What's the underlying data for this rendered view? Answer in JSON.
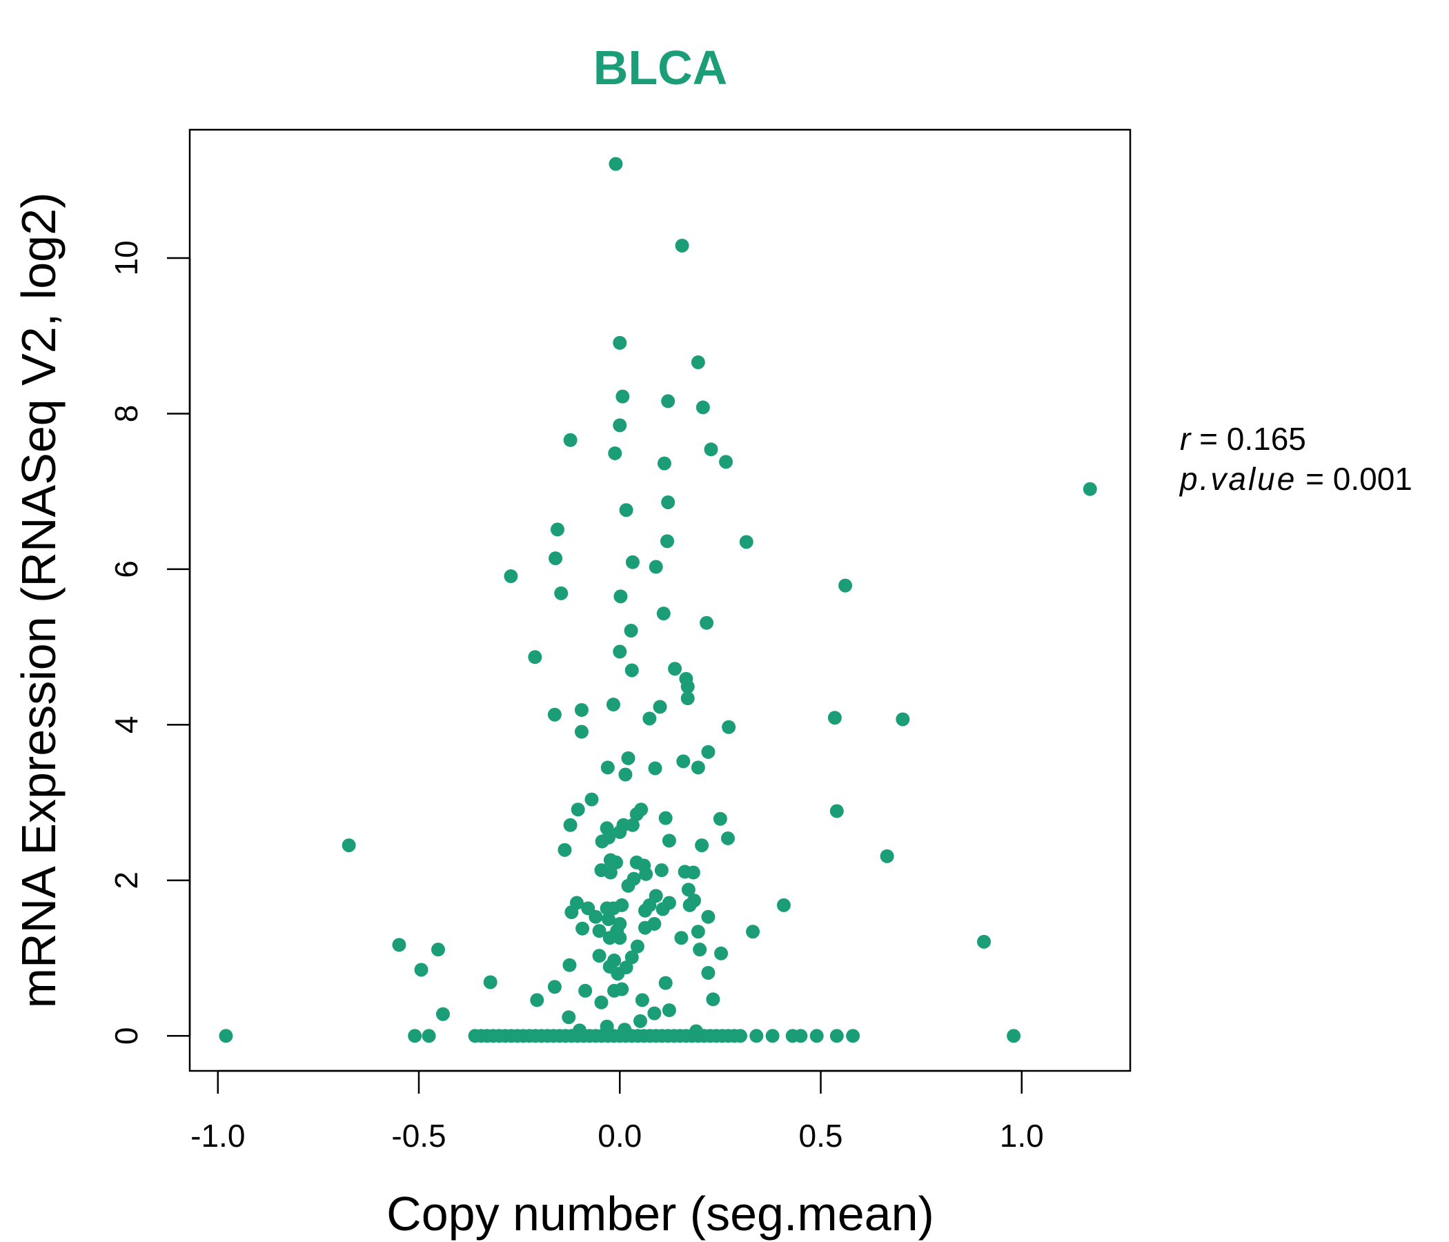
{
  "chart_data": {
    "type": "scatter",
    "title": "BLCA",
    "xlabel": "Copy number (seg.mean)",
    "ylabel": "mRNA Expression (RNASeq V2, log2)",
    "xlim": [
      -1.07,
      1.27
    ],
    "ylim": [
      -0.45,
      11.65
    ],
    "xticks": [
      -1.0,
      -0.5,
      0.0,
      0.5,
      1.0
    ],
    "xtick_labels": [
      "-1.0",
      "-0.5",
      "0.0",
      "0.5",
      "1.0"
    ],
    "yticks": [
      0,
      2,
      4,
      6,
      8,
      10
    ],
    "ytick_labels": [
      "0",
      "2",
      "4",
      "6",
      "8",
      "10"
    ],
    "grid": false,
    "color": "#1b9e77",
    "stats": {
      "r_label": "r",
      "r_value": "0.165",
      "p_label": "p.value",
      "p_value": "0.001",
      "eq": "="
    },
    "points": [
      [
        -0.01,
        11.21
      ],
      [
        0.155,
        10.16
      ],
      [
        0.0,
        8.91
      ],
      [
        0.195,
        8.66
      ],
      [
        0.007,
        8.22
      ],
      [
        0.12,
        8.16
      ],
      [
        0.207,
        8.08
      ],
      [
        0.0,
        7.85
      ],
      [
        -0.123,
        7.66
      ],
      [
        -0.012,
        7.49
      ],
      [
        0.227,
        7.54
      ],
      [
        0.111,
        7.36
      ],
      [
        0.264,
        7.38
      ],
      [
        1.17,
        7.03
      ],
      [
        0.12,
        6.86
      ],
      [
        0.016,
        6.76
      ],
      [
        -0.155,
        6.51
      ],
      [
        0.118,
        6.36
      ],
      [
        0.315,
        6.35
      ],
      [
        -0.16,
        6.14
      ],
      [
        0.032,
        6.09
      ],
      [
        0.09,
        6.03
      ],
      [
        -0.271,
        5.91
      ],
      [
        0.561,
        5.79
      ],
      [
        -0.146,
        5.69
      ],
      [
        0.002,
        5.65
      ],
      [
        0.109,
        5.43
      ],
      [
        0.216,
        5.31
      ],
      [
        0.028,
        5.21
      ],
      [
        0.0,
        4.94
      ],
      [
        -0.211,
        4.87
      ],
      [
        0.03,
        4.7
      ],
      [
        0.137,
        4.72
      ],
      [
        0.165,
        4.59
      ],
      [
        0.169,
        4.49
      ],
      [
        0.169,
        4.34
      ],
      [
        -0.016,
        4.26
      ],
      [
        0.1,
        4.23
      ],
      [
        -0.095,
        4.19
      ],
      [
        -0.162,
        4.13
      ],
      [
        0.535,
        4.09
      ],
      [
        0.074,
        4.08
      ],
      [
        0.704,
        4.07
      ],
      [
        0.271,
        3.97
      ],
      [
        -0.095,
        3.91
      ],
      [
        0.22,
        3.65
      ],
      [
        0.021,
        3.57
      ],
      [
        0.158,
        3.53
      ],
      [
        -0.03,
        3.45
      ],
      [
        0.088,
        3.44
      ],
      [
        0.195,
        3.45
      ],
      [
        0.014,
        3.36
      ],
      [
        -0.07,
        3.04
      ],
      [
        -0.104,
        2.91
      ],
      [
        0.053,
        2.91
      ],
      [
        0.54,
        2.89
      ],
      [
        0.042,
        2.85
      ],
      [
        0.114,
        2.8
      ],
      [
        0.25,
        2.79
      ],
      [
        -0.123,
        2.71
      ],
      [
        0.009,
        2.71
      ],
      [
        -0.032,
        2.67
      ],
      [
        0.032,
        2.71
      ],
      [
        0.0,
        2.62
      ],
      [
        -0.028,
        2.55
      ],
      [
        -0.044,
        2.5
      ],
      [
        0.123,
        2.51
      ],
      [
        0.269,
        2.54
      ],
      [
        -0.674,
        2.45
      ],
      [
        0.204,
        2.45
      ],
      [
        -0.137,
        2.39
      ],
      [
        0.665,
        2.31
      ],
      [
        -0.023,
        2.26
      ],
      [
        0.042,
        2.23
      ],
      [
        -0.009,
        2.23
      ],
      [
        0.06,
        2.19
      ],
      [
        0.104,
        2.13
      ],
      [
        0.162,
        2.11
      ],
      [
        0.183,
        2.1
      ],
      [
        -0.046,
        2.13
      ],
      [
        -0.023,
        2.1
      ],
      [
        0.065,
        2.08
      ],
      [
        0.035,
        2.02
      ],
      [
        0.021,
        1.93
      ],
      [
        0.171,
        1.88
      ],
      [
        0.09,
        1.8
      ],
      [
        -0.107,
        1.71
      ],
      [
        0.185,
        1.74
      ],
      [
        0.123,
        1.71
      ],
      [
        0.005,
        1.68
      ],
      [
        0.408,
        1.68
      ],
      [
        -0.079,
        1.64
      ],
      [
        0.074,
        1.68
      ],
      [
        -0.032,
        1.64
      ],
      [
        -0.016,
        1.64
      ],
      [
        0.174,
        1.68
      ],
      [
        -0.12,
        1.59
      ],
      [
        0.107,
        1.63
      ],
      [
        0.063,
        1.61
      ],
      [
        0.22,
        1.53
      ],
      [
        -0.06,
        1.53
      ],
      [
        -0.028,
        1.5
      ],
      [
        0.0,
        1.44
      ],
      [
        0.086,
        1.44
      ],
      [
        -0.093,
        1.38
      ],
      [
        -0.051,
        1.35
      ],
      [
        -0.007,
        1.35
      ],
      [
        0.063,
        1.39
      ],
      [
        0.331,
        1.34
      ],
      [
        0.195,
        1.34
      ],
      [
        -0.025,
        1.26
      ],
      [
        0.0,
        1.26
      ],
      [
        0.153,
        1.26
      ],
      [
        0.906,
        1.21
      ],
      [
        -0.549,
        1.17
      ],
      [
        0.044,
        1.15
      ],
      [
        -0.452,
        1.11
      ],
      [
        0.199,
        1.11
      ],
      [
        0.252,
        1.06
      ],
      [
        -0.051,
        1.03
      ],
      [
        0.03,
        1.01
      ],
      [
        -0.014,
        0.97
      ],
      [
        -0.125,
        0.91
      ],
      [
        -0.025,
        0.89
      ],
      [
        0.016,
        0.88
      ],
      [
        -0.494,
        0.85
      ],
      [
        -0.005,
        0.8
      ],
      [
        0.22,
        0.81
      ],
      [
        -0.322,
        0.69
      ],
      [
        0.114,
        0.68
      ],
      [
        -0.162,
        0.63
      ],
      [
        0.005,
        0.6
      ],
      [
        -0.014,
        0.58
      ],
      [
        -0.086,
        0.58
      ],
      [
        -0.206,
        0.46
      ],
      [
        -0.046,
        0.43
      ],
      [
        0.232,
        0.47
      ],
      [
        0.056,
        0.46
      ],
      [
        0.123,
        0.33
      ],
      [
        0.086,
        0.29
      ],
      [
        -0.44,
        0.28
      ],
      [
        -0.127,
        0.24
      ],
      [
        0.051,
        0.19
      ],
      [
        -0.032,
        0.12
      ],
      [
        0.012,
        0.08
      ],
      [
        -0.1,
        0.07
      ],
      [
        0.19,
        0.06
      ]
    ],
    "zero_points_x": [
      -0.98,
      -0.51,
      -0.475,
      -0.36,
      -0.345,
      -0.33,
      -0.315,
      -0.3,
      -0.285,
      -0.27,
      -0.255,
      -0.24,
      -0.225,
      -0.21,
      -0.195,
      -0.18,
      -0.165,
      -0.15,
      -0.135,
      -0.12,
      -0.105,
      -0.09,
      -0.075,
      -0.06,
      -0.045,
      -0.03,
      -0.015,
      0.0,
      0.015,
      0.03,
      0.045,
      0.06,
      0.075,
      0.09,
      0.105,
      0.12,
      0.135,
      0.15,
      0.165,
      0.18,
      0.195,
      0.21,
      0.225,
      0.24,
      0.255,
      0.27,
      0.285,
      0.3,
      0.34,
      0.38,
      0.43,
      0.45,
      0.49,
      0.54,
      0.58,
      0.98
    ]
  }
}
